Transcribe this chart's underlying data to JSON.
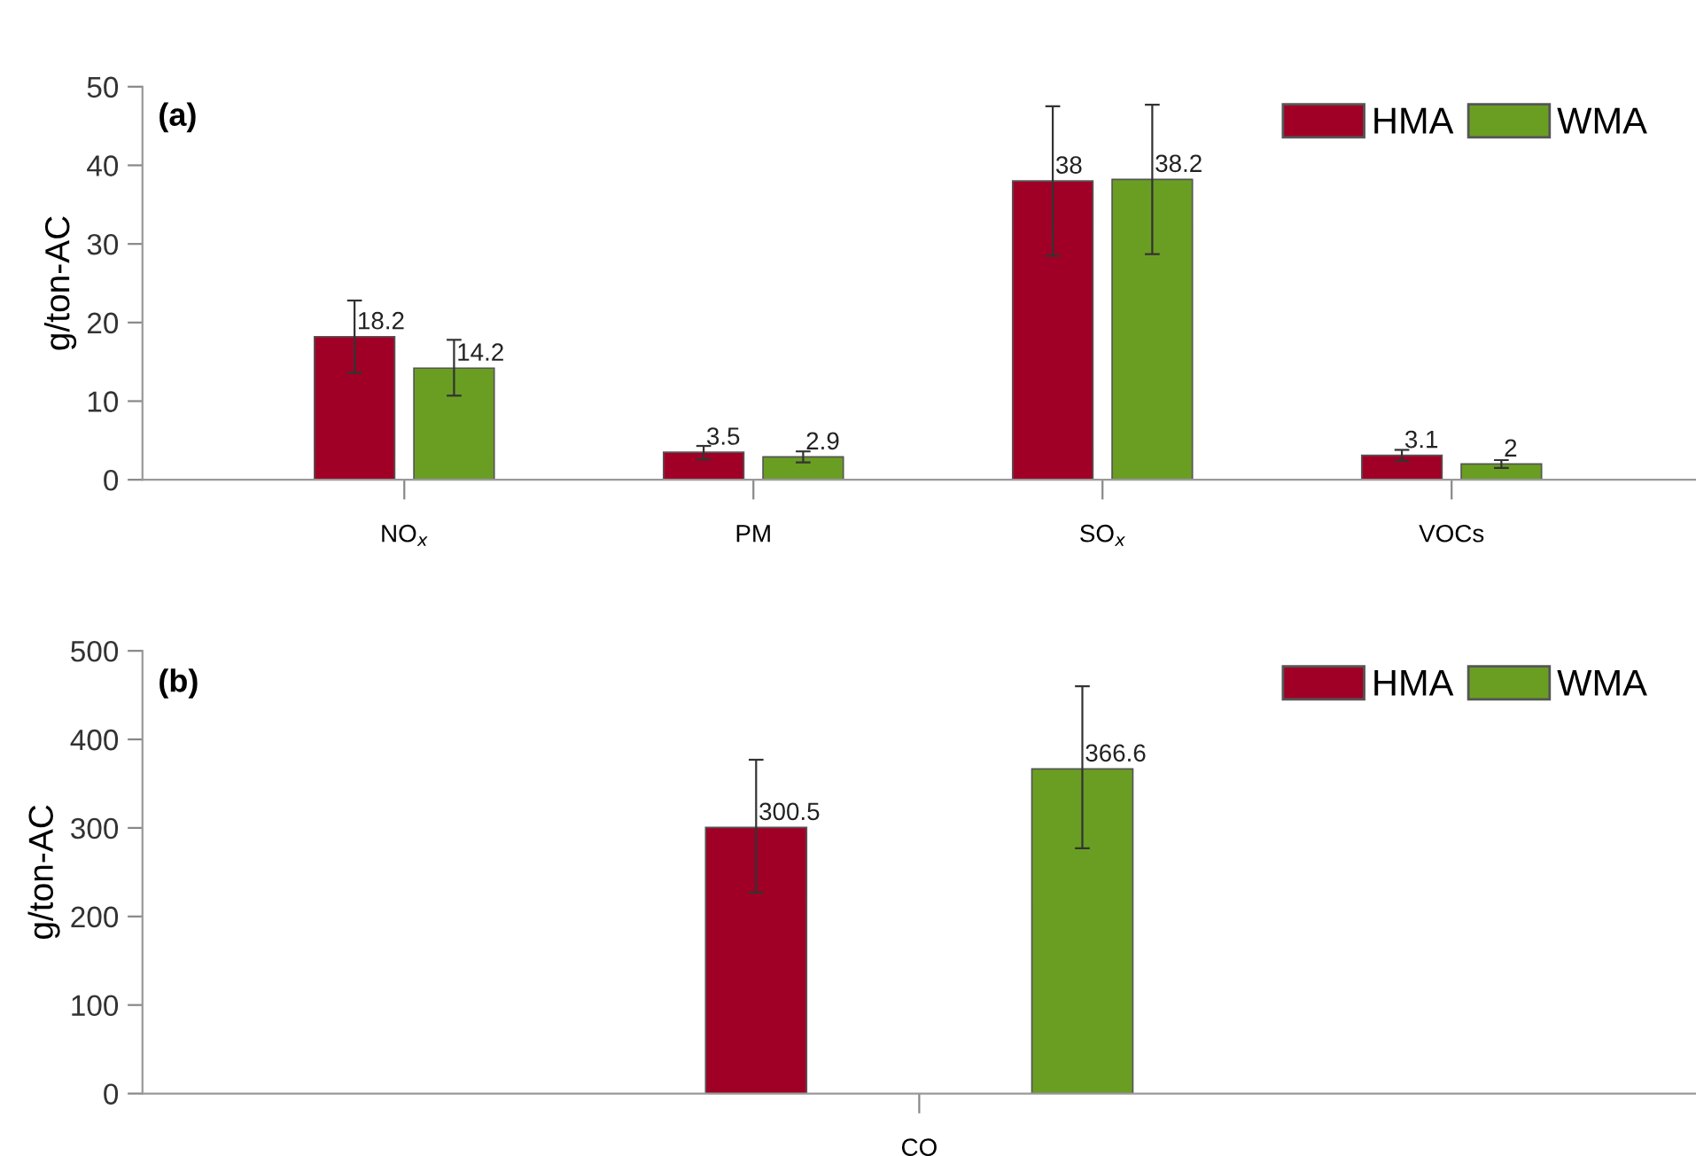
{
  "chart_data": [
    {
      "type": "bar",
      "title": "(a)",
      "ylabel": "g/ton-AC",
      "categories": [
        "NO$_{x}$",
        "PM",
        "SO$_{x}$",
        "VOCs"
      ],
      "ylim": [
        0,
        50
      ],
      "yticks": [
        0,
        10,
        20,
        30,
        40,
        50
      ],
      "grid": false,
      "legend": "top right",
      "data_labels": true,
      "series": [
        {
          "name": "HMA",
          "color": "#a00026",
          "values": [
            18.2,
            3.5,
            38,
            3.1
          ],
          "errors": [
            [
              13.6,
              22.8
            ],
            [
              2.6,
              4.3
            ],
            [
              28.5,
              47.5
            ],
            [
              2.4,
              3.8
            ]
          ]
        },
        {
          "name": "WMA",
          "color": "#6a9e23",
          "values": [
            14.2,
            2.9,
            38.2,
            2
          ],
          "errors": [
            [
              10.7,
              17.8
            ],
            [
              2.2,
              3.6
            ],
            [
              28.7,
              47.7
            ],
            [
              1.5,
              2.5
            ]
          ]
        }
      ]
    },
    {
      "type": "bar",
      "title": "(b)",
      "ylabel": "g/ton-AC",
      "categories": [
        "CO"
      ],
      "ylim": [
        0,
        500
      ],
      "yticks": [
        0,
        100,
        200,
        300,
        400,
        500
      ],
      "grid": false,
      "legend": "top right",
      "data_labels": true,
      "series": [
        {
          "name": "HMA",
          "color": "#a00026",
          "values": [
            300.5
          ],
          "errors": [
            [
              227,
              377
            ]
          ]
        },
        {
          "name": "WMA",
          "color": "#6a9e23",
          "values": [
            366.6
          ],
          "errors": [
            [
              277,
              460
            ]
          ]
        }
      ]
    }
  ]
}
